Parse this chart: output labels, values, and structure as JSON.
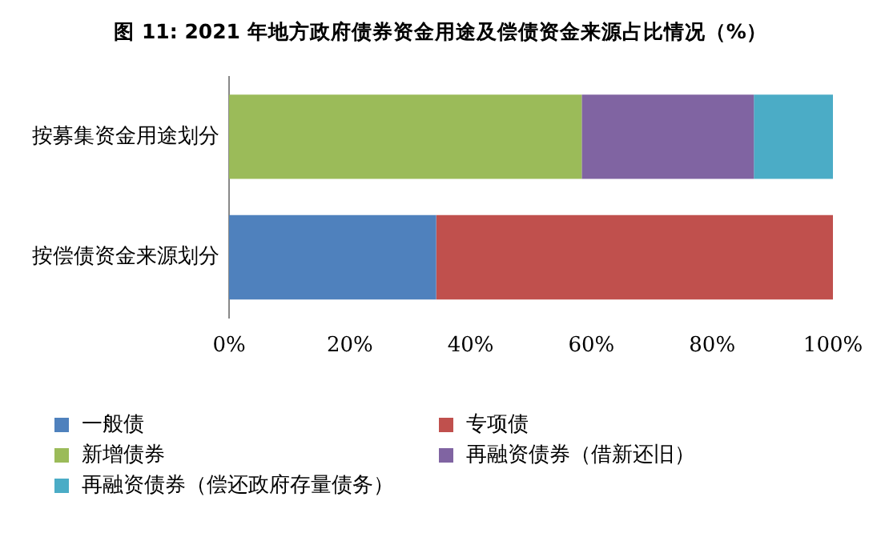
{
  "chart_data": {
    "type": "bar",
    "orientation": "horizontal",
    "stacked": true,
    "title": "图 11: 2021 年地方政府债券资金用途及偿债资金来源占比情况（%）",
    "categories": [
      "按募集资金用途划分",
      "按偿债资金来源划分"
    ],
    "series": [
      {
        "name": "一般债",
        "color": "#4f81bd",
        "values": [
          null,
          34.3
        ]
      },
      {
        "name": "专项债",
        "color": "#c0504d",
        "values": [
          null,
          65.7
        ]
      },
      {
        "name": "新增债券",
        "color": "#9bbb59",
        "values": [
          58.4,
          null
        ]
      },
      {
        "name": "再融资债券（借新还旧）",
        "color": "#8064a2",
        "values": [
          28.5,
          null
        ]
      },
      {
        "name": "再融资债券（偿还政府存量债务）",
        "color": "#4bacc6",
        "values": [
          13.1,
          null
        ]
      }
    ],
    "xlim": [
      0,
      100
    ],
    "xticks": [
      {
        "value": 0,
        "label": "0%"
      },
      {
        "value": 20,
        "label": "20%"
      },
      {
        "value": 40,
        "label": "40%"
      },
      {
        "value": 60,
        "label": "60%"
      },
      {
        "value": 80,
        "label": "80%"
      },
      {
        "value": 100,
        "label": "100%"
      }
    ],
    "grid": false,
    "legend": "bottom"
  }
}
